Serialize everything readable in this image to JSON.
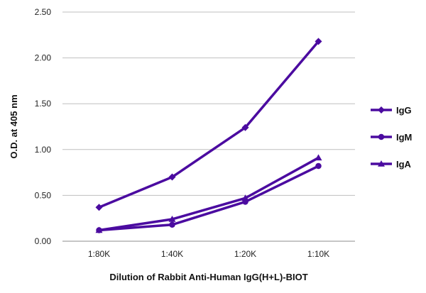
{
  "chart_data": {
    "type": "line",
    "categories": [
      "1:80K",
      "1:40K",
      "1:20K",
      "1:10K"
    ],
    "series": [
      {
        "name": "IgG",
        "values": [
          0.37,
          0.7,
          1.24,
          2.18
        ],
        "marker": "diamond"
      },
      {
        "name": "IgM",
        "values": [
          0.12,
          0.18,
          0.43,
          0.82
        ],
        "marker": "circle"
      },
      {
        "name": "IgA",
        "values": [
          0.12,
          0.24,
          0.47,
          0.91
        ],
        "marker": "triangle"
      }
    ],
    "line_color": "#4B0BA0",
    "xlabel": "Dilution of Rabbit Anti-Human IgG(H+L)-BIOT",
    "ylabel": "O.D. at 405 nm",
    "ylim": [
      0,
      2.5
    ],
    "yticks": [
      "0.00",
      "0.50",
      "1.00",
      "1.50",
      "2.00",
      "2.50"
    ],
    "grid": true,
    "legend_position": "right"
  }
}
